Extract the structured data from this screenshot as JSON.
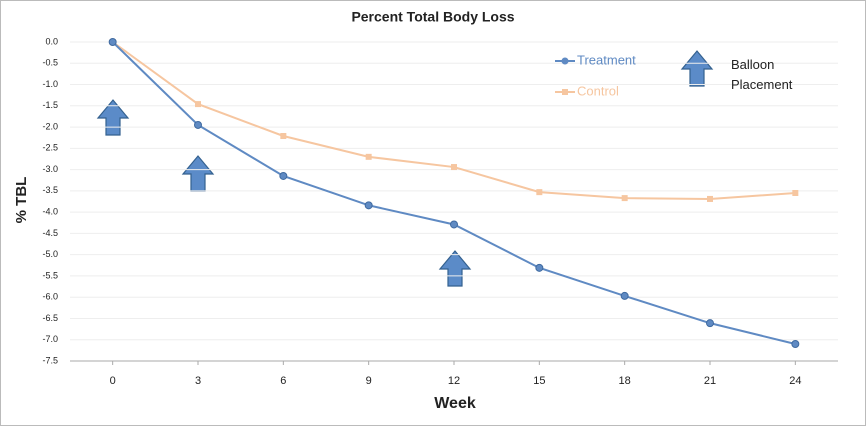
{
  "chart_data": {
    "type": "line",
    "title": "Percent Total Body Loss",
    "x_label": "Week",
    "y_label": "% TBL",
    "x": [
      0,
      3,
      6,
      9,
      12,
      15,
      18,
      21,
      24
    ],
    "xlim": [
      -1.5,
      25.5
    ],
    "xticks": [
      0,
      3,
      6,
      9,
      12,
      15,
      18,
      21,
      24
    ],
    "ylim": [
      -7.5,
      0
    ],
    "yticks": [
      {
        "value": 0,
        "label": "0.0"
      },
      -0.5,
      {
        "value": -1,
        "label": "-1.0"
      },
      -1.5,
      {
        "value": -2,
        "label": "-2.0"
      },
      -2.5,
      {
        "value": -3,
        "label": "-3.0"
      },
      -3.5,
      {
        "value": -4,
        "label": "-4.0"
      },
      -4.5,
      {
        "value": -5,
        "label": "-5.0"
      },
      -5.5,
      {
        "value": -6,
        "label": "-6.0"
      },
      -6.5,
      {
        "value": -7,
        "label": "-7.0"
      },
      -7.5
    ],
    "grid": true,
    "series": [
      {
        "name": "Treatment",
        "color": "#5f8ac3",
        "values": [
          0,
          -1.95,
          -3.15,
          -3.84,
          -4.29,
          -5.31,
          -5.97,
          -6.61,
          -7.1
        ]
      },
      {
        "name": "Control",
        "color": "#f6c6a0",
        "values": [
          0,
          -1.46,
          -2.21,
          -2.7,
          -2.94,
          -3.53,
          -3.67,
          -3.69,
          -3.55
        ]
      }
    ],
    "annotation": "Balloon Placement"
  }
}
